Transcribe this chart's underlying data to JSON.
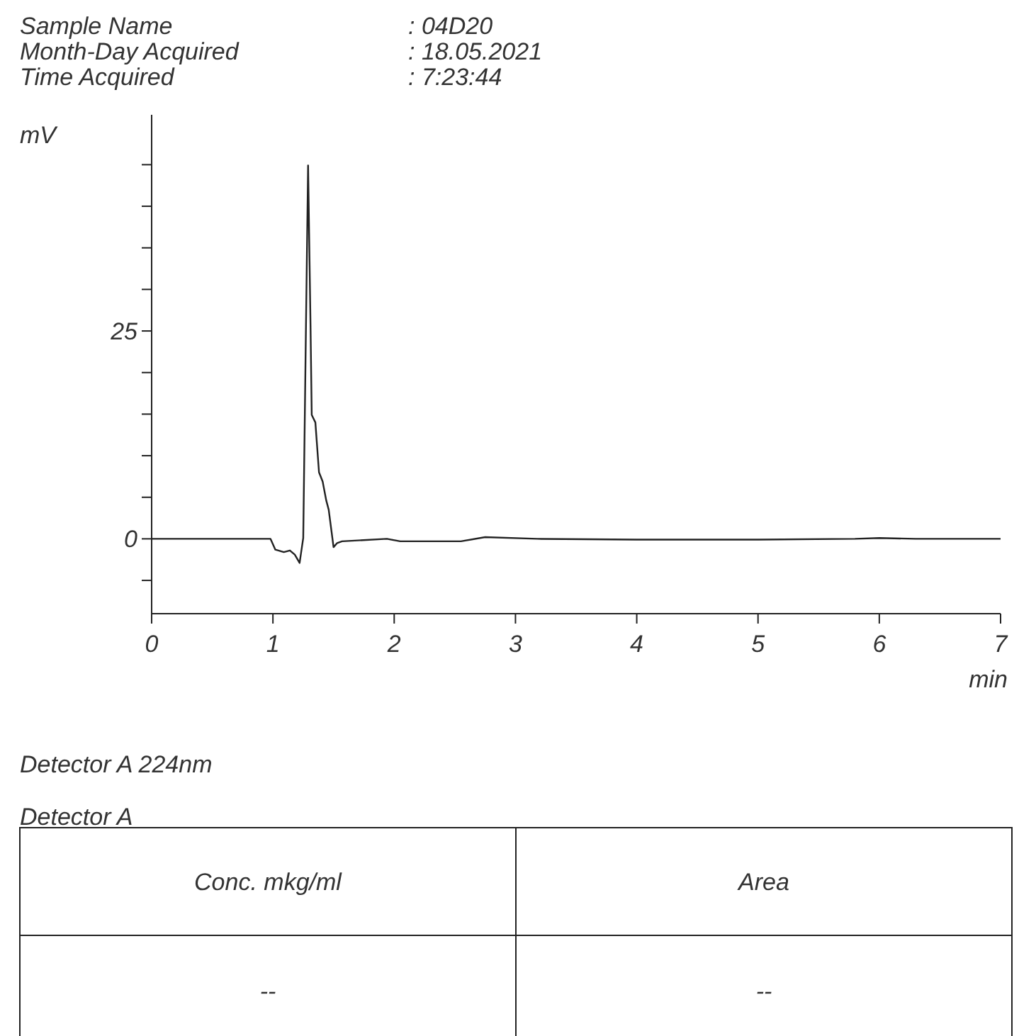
{
  "chart_data": {
    "type": "line",
    "xlabel": "min",
    "ylabel": "mV",
    "annotations": [
      "Sample Name",
      ": 04D20",
      "Month-Day Acquired",
      ": 18.05.2021",
      "Time Acquired",
      ": 7:23:44",
      "Detector A 224nm",
      "Detector A",
      "Conc. mkg/ml",
      "Area",
      "--",
      "--"
    ],
    "xlim": [
      0,
      7
    ],
    "xticks": [
      0,
      1,
      2,
      3,
      4,
      5,
      6,
      7
    ],
    "ylim": [
      -9,
      51
    ],
    "yticks": [
      {
        "value": -5,
        "label": null
      },
      0,
      {
        "value": 5,
        "label": null
      },
      {
        "value": 10,
        "label": null
      },
      {
        "value": 15,
        "label": null
      },
      {
        "value": 20,
        "label": null
      },
      25,
      {
        "value": 30,
        "label": null
      },
      {
        "value": 35,
        "label": null
      },
      {
        "value": 40,
        "label": null
      },
      {
        "value": 45,
        "label": null
      }
    ],
    "grid": false,
    "marker": "none",
    "line_style": "solid",
    "series": [
      {
        "color": "#222222",
        "x": [
          0,
          0.5,
          0.98,
          1.02,
          1.09,
          1.14,
          1.18,
          1.22,
          1.25,
          1.27,
          1.29,
          1.31,
          1.32,
          1.35,
          1.38,
          1.41,
          1.44,
          1.46,
          1.5,
          1.53,
          1.57,
          1.94,
          2.05,
          2.55,
          2.75,
          3.18,
          4,
          5,
          5.8,
          6,
          6.3,
          7
        ],
        "values": [
          0,
          0,
          0,
          -1.3,
          -1.6,
          -1.4,
          -1.9,
          -2.9,
          0.1,
          22.8,
          44.9,
          25.7,
          14.9,
          14,
          8,
          6.9,
          4.6,
          3.5,
          -1,
          -0.5,
          -0.3,
          0,
          -0.3,
          -0.3,
          0.2,
          0,
          -0.1,
          -0.1,
          0,
          0.1,
          0,
          0
        ]
      }
    ]
  }
}
